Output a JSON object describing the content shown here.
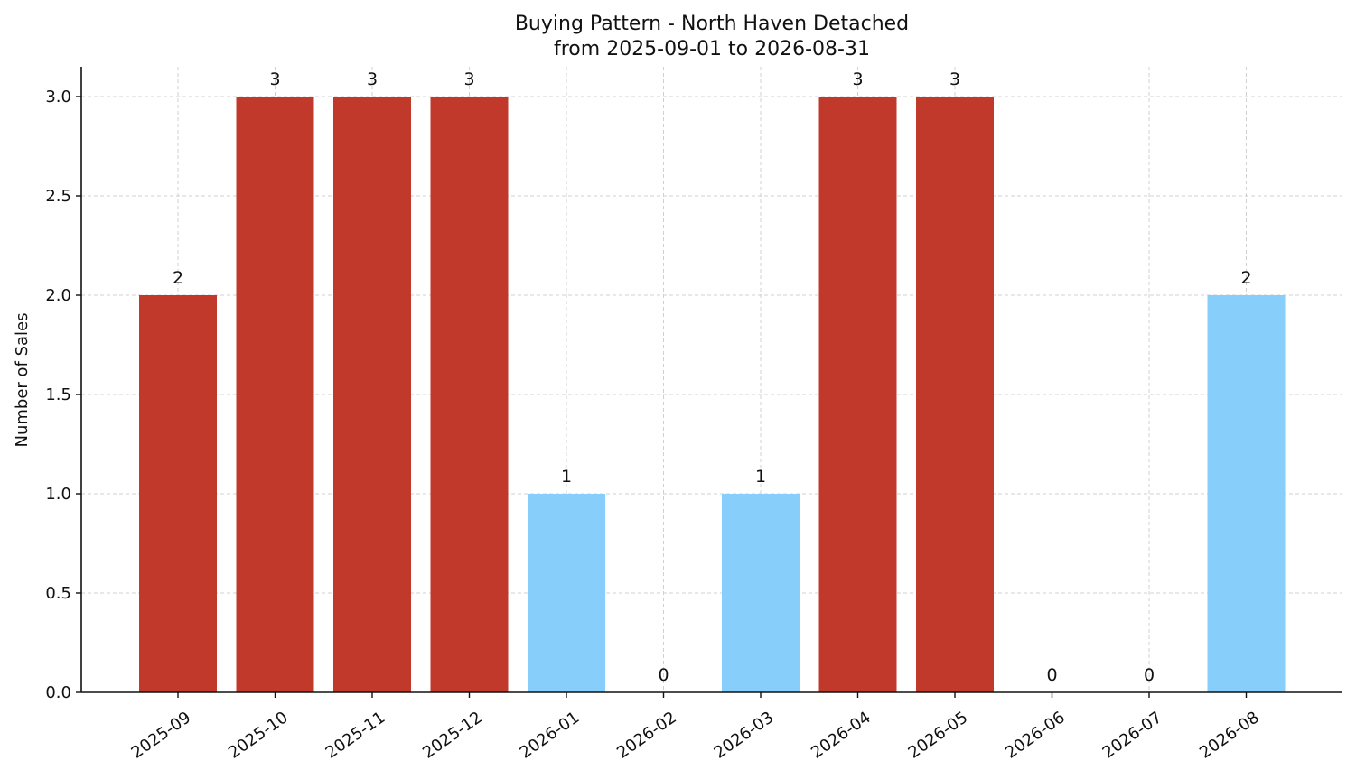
{
  "chart_data": {
    "type": "bar",
    "title_lines": [
      "Buying Pattern - North Haven Detached",
      "from 2025-09-01 to 2026-08-31"
    ],
    "xlabel": "",
    "ylabel": "Number of Sales",
    "categories": [
      "2025-09",
      "2025-10",
      "2025-11",
      "2025-12",
      "2026-01",
      "2026-02",
      "2026-03",
      "2026-04",
      "2026-05",
      "2026-06",
      "2026-07",
      "2026-08"
    ],
    "values": [
      2,
      3,
      3,
      3,
      1,
      0,
      1,
      3,
      3,
      0,
      0,
      2
    ],
    "data_labels": [
      "2",
      "3",
      "3",
      "3",
      "1",
      "0",
      "1",
      "3",
      "3",
      "0",
      "0",
      "2"
    ],
    "ylim": [
      0,
      3.15
    ],
    "yticks": [
      0.0,
      0.5,
      1.0,
      1.5,
      2.0,
      2.5,
      3.0
    ],
    "ytick_labels": [
      "0.0",
      "0.5",
      "1.0",
      "1.5",
      "2.0",
      "2.5",
      "3.0"
    ],
    "grid": true,
    "colors": {
      "high": "#c0392b",
      "low": "#87cefa"
    },
    "bar_colors": [
      "high",
      "high",
      "high",
      "high",
      "low",
      "low",
      "low",
      "high",
      "high",
      "low",
      "low",
      "low"
    ]
  }
}
